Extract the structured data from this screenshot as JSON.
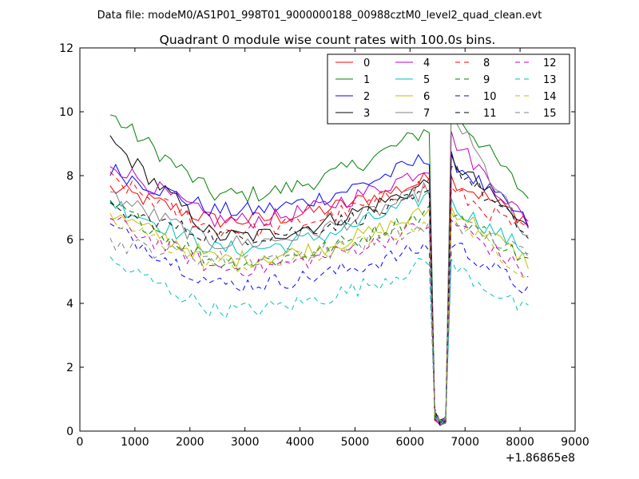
{
  "chart_data": {
    "type": "line",
    "suptitle": "Data file: modeM0/AS1P01_998T01_9000000188_00988cztM0_level2_quad_clean.evt",
    "title": "Quadrant 0 module wise count rates with 100.0s bins.",
    "xlabel": "",
    "ylabel": "",
    "x_offset_label": "+1.86865e8",
    "xlim": [
      0,
      9000
    ],
    "ylim": [
      0,
      12
    ],
    "xticks": [
      0,
      1000,
      2000,
      3000,
      4000,
      5000,
      6000,
      7000,
      8000,
      9000
    ],
    "yticks": [
      0,
      2,
      4,
      6,
      8,
      10,
      12
    ],
    "x_tick_labels": [
      "0",
      "1000",
      "2000",
      "3000",
      "4000",
      "5000",
      "6000",
      "7000",
      "8000",
      "9000"
    ],
    "y_tick_labels": [
      "0",
      "2",
      "4",
      "6",
      "8",
      "10",
      "12"
    ],
    "x_start": 550,
    "x_step": 100,
    "n_points": 77,
    "gap_points": {
      "6450": 0.55,
      "6550": 0.25,
      "6650": 0.35
    },
    "legend_position": "top-right",
    "series": [
      {
        "name": "0",
        "color": "#ff0000",
        "dash": "solid",
        "b1": 7.6,
        "b2": 6.6,
        "pk": 7.9,
        "a2": 7.9,
        "end": 6.6
      },
      {
        "name": "1",
        "color": "#008000",
        "dash": "solid",
        "b1": 9.9,
        "b2": 7.4,
        "pk": 9.5,
        "a2": 10.1,
        "end": 7.3
      },
      {
        "name": "2",
        "color": "#0000ff",
        "dash": "solid",
        "b1": 8.2,
        "b2": 6.9,
        "pk": 8.6,
        "a2": 8.5,
        "end": 6.5
      },
      {
        "name": "3",
        "color": "#000000",
        "dash": "solid",
        "b1": 9.1,
        "b2": 6.1,
        "pk": 7.8,
        "a2": 8.5,
        "end": 6.3
      },
      {
        "name": "4",
        "color": "#bf00bf",
        "dash": "solid",
        "b1": 8.4,
        "b2": 6.6,
        "pk": 8.3,
        "a2": 9.2,
        "end": 6.5
      },
      {
        "name": "5",
        "color": "#00bfbf",
        "dash": "solid",
        "b1": 7.2,
        "b2": 5.7,
        "pk": 7.4,
        "a2": 7.1,
        "end": 5.6
      },
      {
        "name": "6",
        "color": "#bfbf00",
        "dash": "solid",
        "b1": 6.8,
        "b2": 5.4,
        "pk": 6.9,
        "a2": 7.0,
        "end": 5.3
      },
      {
        "name": "7",
        "color": "#808080",
        "dash": "solid",
        "b1": 7.4,
        "b2": 5.9,
        "pk": 7.6,
        "a2": 10.0,
        "end": 5.9
      },
      {
        "name": "8",
        "color": "#ff0000",
        "dash": "dashed",
        "b1": 7.9,
        "b2": 6.3,
        "pk": 7.8,
        "a2": 7.5,
        "end": 6.2
      },
      {
        "name": "9",
        "color": "#008000",
        "dash": "dashed",
        "b1": 7.1,
        "b2": 5.3,
        "pk": 6.9,
        "a2": 6.9,
        "end": 5.3
      },
      {
        "name": "10",
        "color": "#0000ff",
        "dash": "dashed",
        "b1": 6.4,
        "b2": 4.6,
        "pk": 5.8,
        "a2": 5.9,
        "end": 4.4
      },
      {
        "name": "11",
        "color": "#000000",
        "dash": "dashed",
        "b1": 6.9,
        "b2": 6.1,
        "pk": 7.4,
        "a2": 8.4,
        "end": 6.1
      },
      {
        "name": "12",
        "color": "#bf00bf",
        "dash": "dashed",
        "b1": 6.6,
        "b2": 5.1,
        "pk": 6.5,
        "a2": 6.6,
        "end": 4.9
      },
      {
        "name": "13",
        "color": "#00bfbf",
        "dash": "dashed",
        "b1": 5.3,
        "b2": 3.8,
        "pk": 5.3,
        "a2": 5.2,
        "end": 3.7
      },
      {
        "name": "14",
        "color": "#bfbf00",
        "dash": "dashed",
        "b1": 6.6,
        "b2": 5.2,
        "pk": 6.6,
        "a2": 6.7,
        "end": 4.9
      },
      {
        "name": "15",
        "color": "#808080",
        "dash": "dashed",
        "b1": 5.9,
        "b2": 5.4,
        "pk": 6.4,
        "a2": 6.6,
        "end": 5.5
      }
    ]
  }
}
